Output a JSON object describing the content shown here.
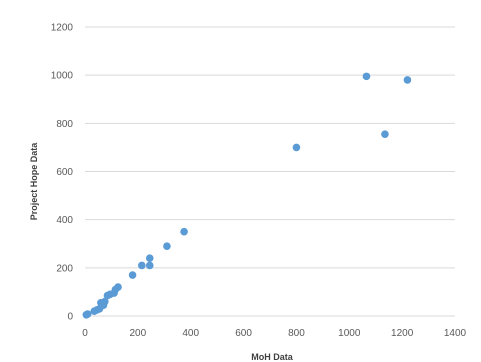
{
  "chart_data": {
    "type": "scatter",
    "title": "",
    "xlabel": "MoH Data",
    "ylabel": "Project Hope Data",
    "xlim": [
      0,
      1400
    ],
    "ylim": [
      0,
      1200
    ],
    "x_ticks": [
      "0",
      "200",
      "400",
      "600",
      "800",
      "1000",
      "1200",
      "1400"
    ],
    "y_ticks": [
      "0",
      "200",
      "400",
      "600",
      "800",
      "1000",
      "1200"
    ],
    "grid": "horizontal",
    "legend": "none",
    "series_color": "#5b9bd5",
    "points": [
      {
        "x": 5,
        "y": 5
      },
      {
        "x": 10,
        "y": 8
      },
      {
        "x": 35,
        "y": 20
      },
      {
        "x": 45,
        "y": 25
      },
      {
        "x": 55,
        "y": 30
      },
      {
        "x": 60,
        "y": 55
      },
      {
        "x": 70,
        "y": 45
      },
      {
        "x": 75,
        "y": 60
      },
      {
        "x": 85,
        "y": 85
      },
      {
        "x": 95,
        "y": 90
      },
      {
        "x": 110,
        "y": 95
      },
      {
        "x": 115,
        "y": 110
      },
      {
        "x": 125,
        "y": 120
      },
      {
        "x": 180,
        "y": 170
      },
      {
        "x": 215,
        "y": 210
      },
      {
        "x": 245,
        "y": 210
      },
      {
        "x": 245,
        "y": 240
      },
      {
        "x": 310,
        "y": 290
      },
      {
        "x": 375,
        "y": 350
      },
      {
        "x": 800,
        "y": 700
      },
      {
        "x": 1065,
        "y": 995
      },
      {
        "x": 1135,
        "y": 755
      },
      {
        "x": 1220,
        "y": 980
      }
    ]
  }
}
